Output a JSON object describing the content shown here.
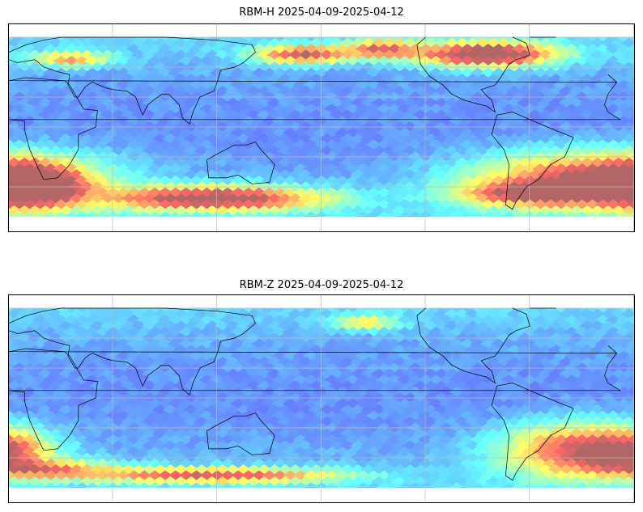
{
  "figure": {
    "panels": [
      {
        "id": "rbm-h",
        "title": "RBM-H 2025-04-09-2025-04-12",
        "colormap": "jet",
        "alpha": 0.6,
        "high_regions": [
          {
            "lon": 35,
            "lat": 45,
            "rx": 24,
            "ry": 5,
            "amp": 0.5
          },
          {
            "lon": 170,
            "lat": 48,
            "rx": 28,
            "ry": 6,
            "amp": 0.7
          },
          {
            "lon": 215,
            "lat": 52,
            "rx": 20,
            "ry": 6,
            "amp": 0.55
          },
          {
            "lon": 275,
            "lat": 48,
            "rx": 40,
            "ry": 8,
            "amp": 0.9
          },
          {
            "lon": 340,
            "lat": -35,
            "rx": 70,
            "ry": 18,
            "amp": 0.75
          },
          {
            "lon": 10,
            "lat": -40,
            "rx": 30,
            "ry": 14,
            "amp": 0.8
          },
          {
            "lon": 120,
            "lat": -48,
            "rx": 60,
            "ry": 8,
            "amp": 0.85
          },
          {
            "lon": 300,
            "lat": -45,
            "rx": 40,
            "ry": 8,
            "amp": 0.5
          }
        ],
        "base_level": 0.2
      },
      {
        "id": "rbm-z",
        "title": "RBM-Z 2025-04-09-2025-04-12",
        "colormap": "jet",
        "alpha": 0.6,
        "high_regions": [
          {
            "lon": 25,
            "lat": -48,
            "rx": 40,
            "ry": 6,
            "amp": 0.45
          },
          {
            "lon": 120,
            "lat": -52,
            "rx": 70,
            "ry": 5,
            "amp": 0.65
          },
          {
            "lon": 205,
            "lat": 50,
            "rx": 18,
            "ry": 5,
            "amp": 0.4
          },
          {
            "lon": 330,
            "lat": -35,
            "rx": 45,
            "ry": 18,
            "amp": 0.7
          },
          {
            "lon": 0,
            "lat": -35,
            "rx": 25,
            "ry": 12,
            "amp": 0.35
          }
        ],
        "base_level": 0.2
      }
    ],
    "map_extent": {
      "lon_min": 0,
      "lon_max": 360,
      "lat_min": -60,
      "lat_max": 60
    },
    "gridlines": {
      "lon_step": 60,
      "lat_step": 20,
      "color": "#bbbbbb"
    }
  }
}
